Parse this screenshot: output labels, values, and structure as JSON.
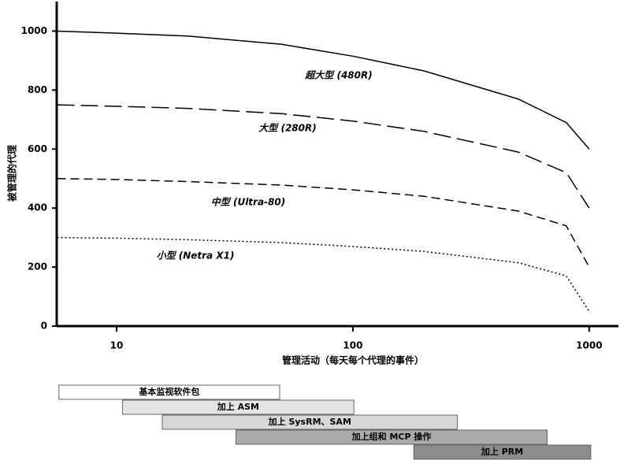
{
  "chart_data": {
    "type": "line",
    "xlabel": "管理活动（每天每个代理的事件）",
    "ylabel": "被管理的代理",
    "xscale": "log",
    "xlim": [
      5.58,
      1330
    ],
    "xticks": [
      10,
      100,
      1000
    ],
    "ylim": [
      0,
      1100
    ],
    "yticks": [
      0,
      200,
      400,
      600,
      800,
      1000
    ],
    "x": [
      5.6,
      10,
      20,
      50,
      100,
      200,
      500,
      800,
      1000
    ],
    "series": [
      {
        "name": "超大型 (480R)",
        "color": "#000000",
        "style": "solid",
        "values": [
          1000,
          993,
          983,
          955,
          915,
          865,
          770,
          690,
          600
        ]
      },
      {
        "name": "大型 (280R)",
        "color": "#000000",
        "style": "long-dash",
        "values": [
          750,
          745,
          738,
          720,
          695,
          660,
          590,
          520,
          400
        ]
      },
      {
        "name": "中型 (Ultra-80)",
        "color": "#000000",
        "style": "dash",
        "values": [
          500,
          497,
          490,
          478,
          462,
          440,
          390,
          340,
          200
        ]
      },
      {
        "name": "小型 (Netra X1)",
        "color": "#000000",
        "style": "dot",
        "values": [
          300,
          298,
          293,
          283,
          270,
          253,
          215,
          170,
          50
        ]
      }
    ],
    "packages": [
      {
        "label": "基本监视软件包",
        "start": 5.7,
        "end": 49,
        "color": "#ffffff"
      },
      {
        "label": "加上 ASM",
        "start": 10.6,
        "end": 101,
        "color": "#e4e4e4"
      },
      {
        "label": "加上 SysRM、SAM",
        "start": 15.6,
        "end": 277,
        "color": "#d8d8d8"
      },
      {
        "label": "加上组和 MCP 操作",
        "start": 32,
        "end": 664,
        "color": "#ababab"
      },
      {
        "label": "加上 PRM",
        "start": 181,
        "end": 1016,
        "color": "#8c8c8c"
      }
    ]
  }
}
